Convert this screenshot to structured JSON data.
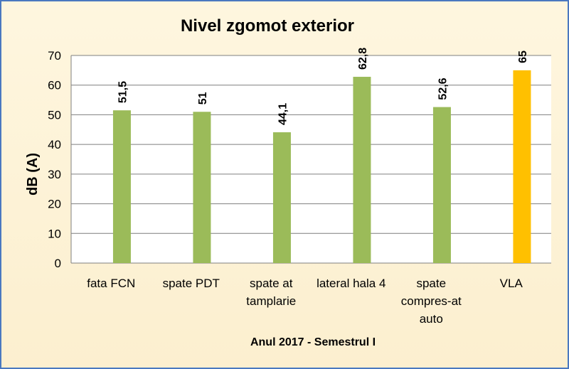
{
  "chart_data": {
    "type": "bar",
    "title": "Nivel zgomot exterior",
    "xlabel": "Anul 2017 - Semestrul I",
    "ylabel": "dB (A)",
    "ylim": [
      0,
      70
    ],
    "yticks": [
      "0",
      "10",
      "20",
      "30",
      "40",
      "50",
      "60",
      "70"
    ],
    "grid": true,
    "categories": [
      "fata FCN",
      "spate PDT",
      "spate at tamplarie",
      "lateral hala 4",
      "spate compres-at auto",
      "VLA"
    ],
    "category_lines": [
      [
        "fata FCN"
      ],
      [
        "spate PDT"
      ],
      [
        "spate at",
        "tamplarie"
      ],
      [
        "lateral hala 4"
      ],
      [
        "spate",
        "compres-at",
        "auto"
      ],
      [
        "VLA"
      ]
    ],
    "values": [
      51.5,
      51,
      44.1,
      62.8,
      52.6,
      65
    ],
    "data_labels": [
      "51,5",
      "51",
      "44,1",
      "62,8",
      "52,6",
      "65"
    ],
    "colors": {
      "bar": "#9bbb59",
      "highlight_bar": "#ffc000",
      "highlight_index": 5,
      "grid": "#7f7f7f",
      "plot_background": "#ffffff",
      "frame_border": "#4a78c0"
    }
  }
}
